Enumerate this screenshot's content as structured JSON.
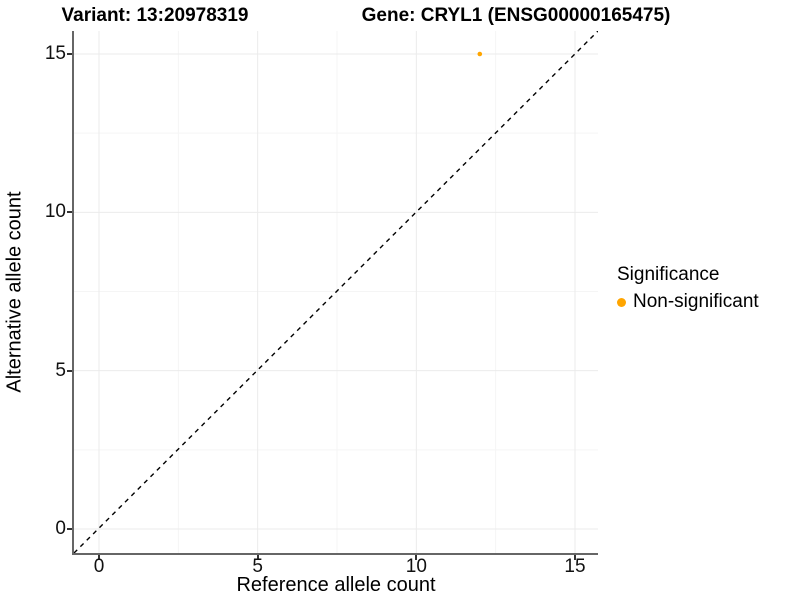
{
  "figure": {
    "title_left": "Variant: 13:20978319",
    "title_right": "Gene: CRYL1 (ENSG00000165475)"
  },
  "legend": {
    "title": "Significance",
    "items": [
      {
        "label": "Non-significant",
        "color": "#FFA500",
        "marker": "dot-icon"
      }
    ]
  },
  "chart_data": {
    "type": "scatter",
    "title": "Variant: 13:20978319 / Gene: CRYL1 (ENSG00000165475)",
    "xlabel": "Reference allele count",
    "ylabel": "Alternative allele count",
    "xticks": [
      0,
      5,
      10,
      15
    ],
    "yticks": [
      0,
      5,
      10,
      15
    ],
    "xlim": [
      -0.79,
      15.73
    ],
    "ylim": [
      -0.76,
      15.73
    ],
    "grid": "major and minor horizontal+vertical, light gray, white background",
    "legend_position": "right-center",
    "series": [
      {
        "name": "Non-significant",
        "color": "#FFA500",
        "marker": "circle",
        "points": [
          {
            "x": 12,
            "y": 15
          }
        ]
      }
    ],
    "reference_line": {
      "type": "identity y=x",
      "style": "dashed",
      "color": "#000000"
    }
  },
  "colors": {
    "background": "#FFFFFF",
    "grid_major": "#EBEBEB",
    "grid_minor": "#F5F5F5",
    "axis_line": "#666666",
    "tick_mark": "#333333",
    "accent_orange": "#FFA500",
    "text": "#000000"
  }
}
